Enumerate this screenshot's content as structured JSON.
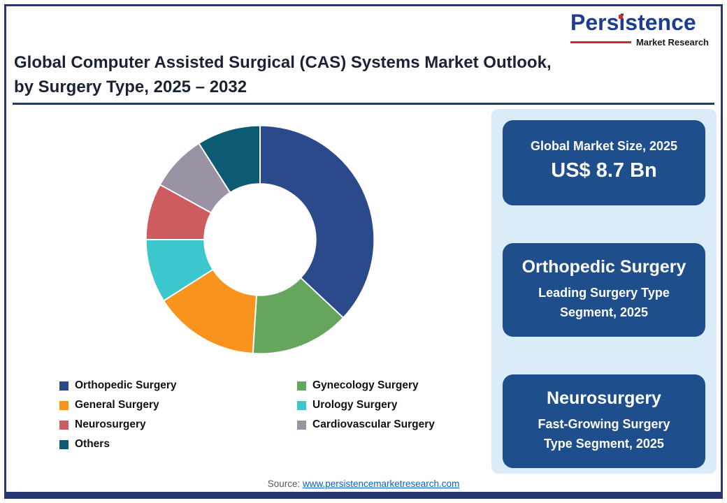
{
  "header": {
    "title_line1": "Global Computer Assisted Surgical (CAS) Systems Market Outlook,",
    "title_line2": "by Surgery Type, 2025 – 2032",
    "logo": {
      "brand": "Persistence",
      "subtext": "Market Research",
      "brand_color": "#1e3d8f",
      "accent_color": "#d22b27"
    }
  },
  "chart_data": {
    "type": "pie",
    "donut": true,
    "title": "Global Computer Assisted Surgical (CAS) Systems Market Outlook, by Surgery Type, 2025 – 2032",
    "start_angle_deg": -90,
    "direction": "clockwise",
    "legend_position": "bottom-left",
    "values_are_estimated_percent": true,
    "segments": [
      {
        "label": "Orthopedic Surgery",
        "value": 37,
        "color": "#2b4a8c"
      },
      {
        "label": "Gynecology Surgery",
        "value": 14,
        "color": "#66a55e"
      },
      {
        "label": "General Surgery",
        "value": 15,
        "color": "#f8941d"
      },
      {
        "label": "Urology Surgery",
        "value": 9,
        "color": "#3cc7cc"
      },
      {
        "label": "Neurosurgery",
        "value": 8,
        "color": "#cd5b60"
      },
      {
        "label": "Cardiovascular Surgery",
        "value": 8,
        "color": "#9b93a4"
      },
      {
        "label": "Others",
        "value": 9,
        "color": "#0d5b73"
      }
    ]
  },
  "sidebar": {
    "panel_color": "#d9ecf8",
    "card_color": "#1f4e8c",
    "cards": [
      {
        "line1": "Global Market Size, 2025",
        "line2": "US$ 8.7 Bn"
      },
      {
        "line1": "Orthopedic Surgery",
        "line2": "Leading Surgery Type Segment, 2025"
      },
      {
        "line1": "Neurosurgery",
        "line2": "Fast-Growing Surgery Type Segment, 2025"
      }
    ]
  },
  "footer": {
    "source_label": "Source:",
    "source_link": "www.persistencemarketresearch.com"
  }
}
